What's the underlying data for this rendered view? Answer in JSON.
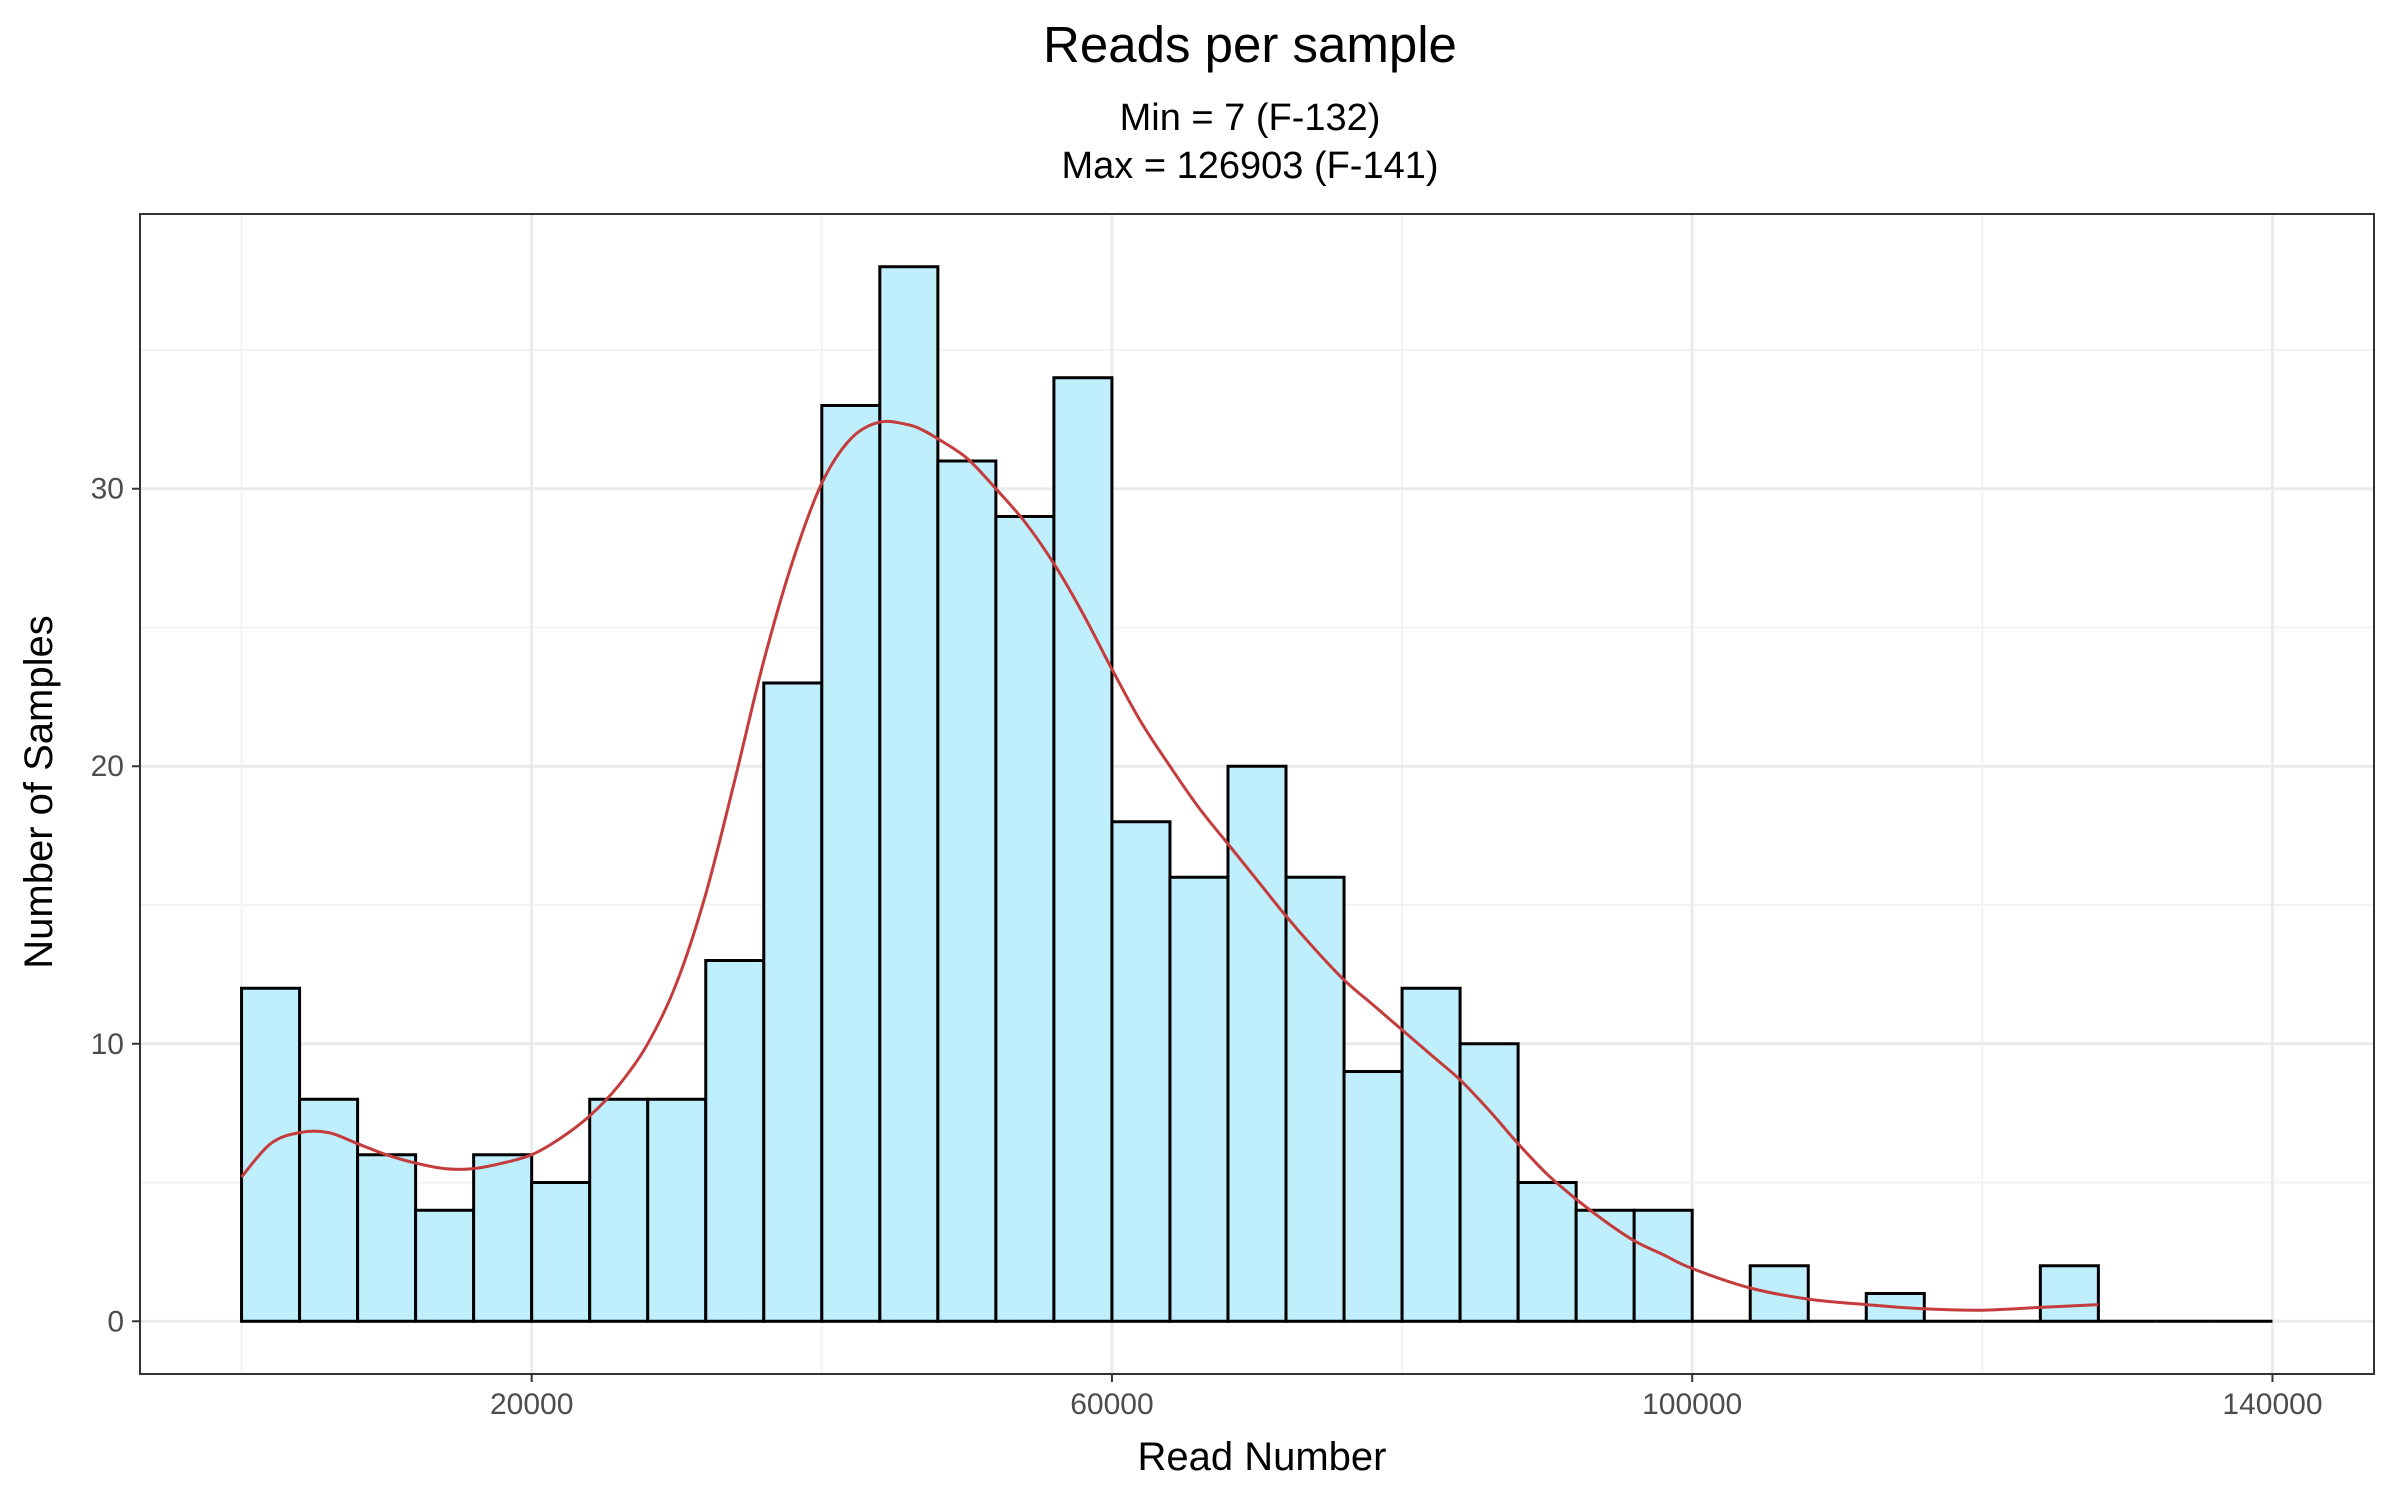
{
  "chart_data": {
    "type": "bar",
    "title": "Reads per sample",
    "subtitle_lines": [
      "Min = 7 (F-132)",
      "Max = 126903 (F-141)"
    ],
    "xlabel": "Read Number",
    "ylabel": "Number of Samples",
    "xlim": [
      -7000,
      147000
    ],
    "ylim": [
      -1.9,
      39.9
    ],
    "x_ticks": [
      20000,
      60000,
      100000,
      140000
    ],
    "x_tick_labels": [
      "20000",
      "60000",
      "100000",
      "140000"
    ],
    "y_ticks": [
      0,
      10,
      20,
      30
    ],
    "y_tick_labels": [
      "0",
      "10",
      "20",
      "30"
    ],
    "grid": true,
    "bin_width": 4000,
    "bins": [
      {
        "start": 0,
        "count": 12
      },
      {
        "start": 4000,
        "count": 8
      },
      {
        "start": 8000,
        "count": 6
      },
      {
        "start": 12000,
        "count": 4
      },
      {
        "start": 16000,
        "count": 6
      },
      {
        "start": 20000,
        "count": 5
      },
      {
        "start": 24000,
        "count": 8
      },
      {
        "start": 28000,
        "count": 8
      },
      {
        "start": 32000,
        "count": 13
      },
      {
        "start": 36000,
        "count": 23
      },
      {
        "start": 40000,
        "count": 33
      },
      {
        "start": 44000,
        "count": 38
      },
      {
        "start": 48000,
        "count": 31
      },
      {
        "start": 52000,
        "count": 29
      },
      {
        "start": 56000,
        "count": 34
      },
      {
        "start": 60000,
        "count": 18
      },
      {
        "start": 64000,
        "count": 16
      },
      {
        "start": 68000,
        "count": 20
      },
      {
        "start": 72000,
        "count": 16
      },
      {
        "start": 76000,
        "count": 9
      },
      {
        "start": 80000,
        "count": 12
      },
      {
        "start": 84000,
        "count": 10
      },
      {
        "start": 88000,
        "count": 5
      },
      {
        "start": 92000,
        "count": 4
      },
      {
        "start": 96000,
        "count": 4
      },
      {
        "start": 100000,
        "count": 0
      },
      {
        "start": 104000,
        "count": 2
      },
      {
        "start": 108000,
        "count": 0
      },
      {
        "start": 112000,
        "count": 1
      },
      {
        "start": 116000,
        "count": 0
      },
      {
        "start": 120000,
        "count": 0
      },
      {
        "start": 124000,
        "count": 2
      },
      {
        "start": 128000,
        "count": 0
      },
      {
        "start": 132000,
        "count": 0
      },
      {
        "start": 136000,
        "count": 0
      }
    ],
    "density_curve": {
      "x": [
        0,
        2000,
        4000,
        6000,
        8000,
        10000,
        12000,
        14000,
        16000,
        18000,
        20000,
        22000,
        24000,
        26000,
        28000,
        30000,
        32000,
        34000,
        36000,
        38000,
        40000,
        42000,
        44000,
        46000,
        47000,
        48000,
        50000,
        52000,
        54000,
        56000,
        58000,
        60000,
        62000,
        64000,
        66000,
        68000,
        70000,
        72000,
        74000,
        76000,
        78000,
        80000,
        82000,
        84000,
        86000,
        88000,
        90000,
        92000,
        94000,
        96000,
        98000,
        100000,
        104000,
        108000,
        112000,
        116000,
        120000,
        124000,
        128000
      ],
      "y": [
        5.2,
        6.4,
        6.8,
        6.8,
        6.4,
        6.0,
        5.7,
        5.5,
        5.5,
        5.7,
        6.0,
        6.6,
        7.4,
        8.5,
        10.0,
        12.2,
        15.4,
        19.5,
        23.8,
        27.4,
        30.2,
        31.8,
        32.4,
        32.3,
        32.1,
        31.8,
        31.1,
        30.0,
        28.8,
        27.3,
        25.5,
        23.5,
        21.6,
        20.0,
        18.5,
        17.2,
        15.9,
        14.6,
        13.4,
        12.3,
        11.4,
        10.5,
        9.6,
        8.7,
        7.6,
        6.4,
        5.3,
        4.4,
        3.6,
        2.9,
        2.4,
        1.9,
        1.2,
        0.8,
        0.6,
        0.45,
        0.4,
        0.5,
        0.6
      ]
    },
    "colors": {
      "bar_fill": "#bfeefd",
      "bar_stroke": "#000000",
      "curve": "#c43c3c",
      "grid_major": "#ebebeb",
      "grid_minor": "#f3f3f3",
      "panel_border": "#333333",
      "tick_label": "#4d4d4d"
    }
  }
}
